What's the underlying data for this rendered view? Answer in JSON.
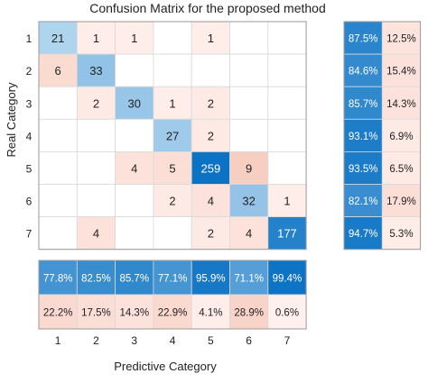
{
  "chart_data": {
    "type": "heatmap",
    "title": "Confusion Matrix for the proposed method",
    "xlabel": "Predictive Category",
    "ylabel": "Real Category",
    "row_labels": [
      "1",
      "2",
      "3",
      "4",
      "5",
      "6",
      "7"
    ],
    "col_labels": [
      "1",
      "2",
      "3",
      "4",
      "5",
      "6",
      "7"
    ],
    "matrix": [
      [
        21,
        1,
        1,
        null,
        1,
        null,
        null
      ],
      [
        6,
        33,
        null,
        null,
        null,
        null,
        null
      ],
      [
        null,
        2,
        30,
        1,
        2,
        null,
        null
      ],
      [
        null,
        null,
        null,
        27,
        2,
        null,
        null
      ],
      [
        null,
        null,
        4,
        5,
        259,
        9,
        null
      ],
      [
        null,
        null,
        null,
        2,
        4,
        32,
        1
      ],
      [
        null,
        4,
        null,
        null,
        2,
        4,
        177
      ]
    ],
    "row_summary": {
      "correct": [
        "87.5%",
        "84.6%",
        "85.7%",
        "93.1%",
        "93.5%",
        "82.1%",
        "94.7%"
      ],
      "incorrect": [
        "12.5%",
        "15.4%",
        "14.3%",
        "6.9%",
        "6.5%",
        "17.9%",
        "5.3%"
      ]
    },
    "column_summary": {
      "correct": [
        "77.8%",
        "82.5%",
        "85.7%",
        "77.1%",
        "95.9%",
        "71.1%",
        "99.4%"
      ],
      "incorrect": [
        "22.2%",
        "17.5%",
        "14.3%",
        "22.9%",
        "4.1%",
        "28.9%",
        "0.6%"
      ]
    },
    "colors": {
      "diag_high": "#0b72c4",
      "diag_low": "#d3e9f7",
      "off_low": "#fff1ee",
      "off_high": "#f2b9a4",
      "grid": "#d9d9d9",
      "border": "#999999"
    }
  }
}
